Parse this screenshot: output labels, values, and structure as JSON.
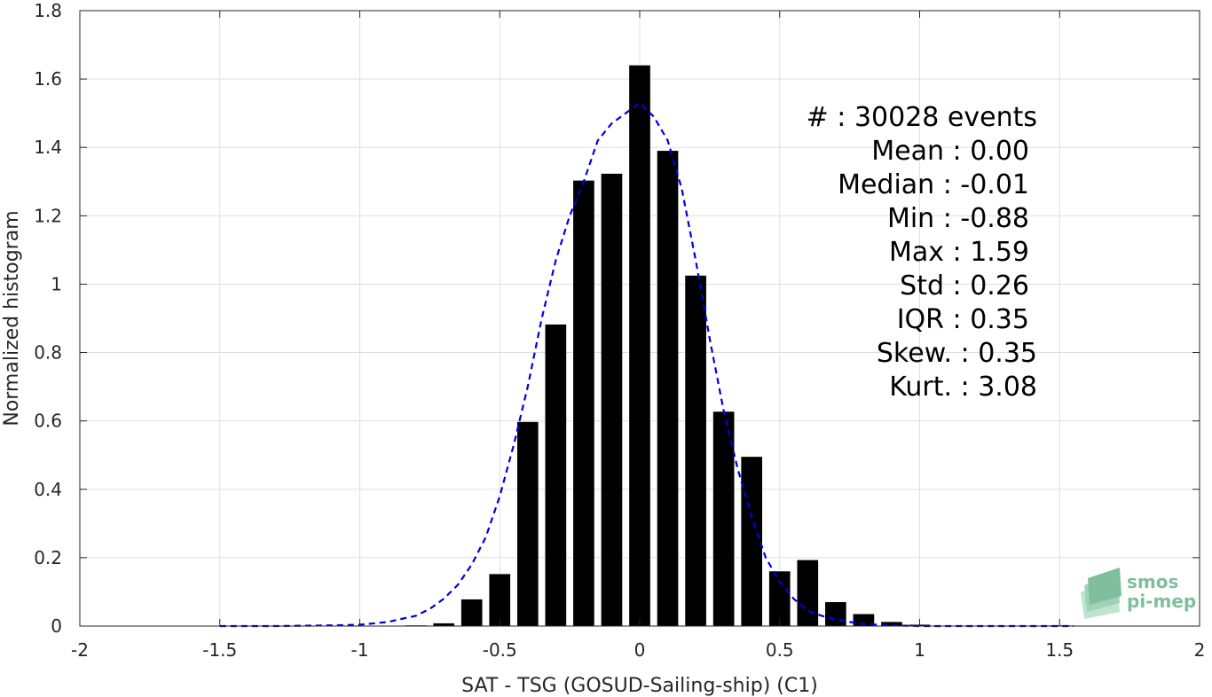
{
  "chart_data": {
    "type": "bar",
    "xlabel": "SAT - TSG (GOSUD-Sailing-ship) (C1)",
    "ylabel": "Normalized histogram",
    "xlim": [
      -2,
      2
    ],
    "ylim": [
      0,
      1.8
    ],
    "xticks": [
      -2,
      -1.5,
      -1,
      -0.5,
      0,
      0.5,
      1,
      1.5,
      2
    ],
    "xtick_labels": [
      "-2",
      "-1.5",
      "-1",
      "-0.5",
      "0",
      "0.5",
      "1",
      "1.5",
      "2"
    ],
    "yticks": [
      0,
      0.2,
      0.4,
      0.6,
      0.8,
      1,
      1.2,
      1.4,
      1.6,
      1.8
    ],
    "ytick_labels": [
      "0",
      "0.2",
      "0.4",
      "0.6",
      "0.8",
      "1",
      "1.2",
      "1.4",
      "1.6",
      "1.8"
    ],
    "grid": true,
    "bar_color": "#000000",
    "bars": {
      "centers": [
        -0.8,
        -0.7,
        -0.6,
        -0.5,
        -0.4,
        -0.3,
        -0.2,
        -0.1,
        0.0,
        0.1,
        0.2,
        0.3,
        0.4,
        0.5,
        0.6,
        0.7,
        0.8,
        0.9,
        1.0,
        1.5
      ],
      "values": [
        0.002,
        0.008,
        0.078,
        0.152,
        0.597,
        0.882,
        1.303,
        1.323,
        1.64,
        1.39,
        1.025,
        0.627,
        0.495,
        0.16,
        0.193,
        0.07,
        0.035,
        0.012,
        0.004,
        0.002
      ],
      "width": 0.075
    },
    "fit_curve": {
      "style": "dashed",
      "color": "#0000dd",
      "x": [
        -1.5,
        -1.3,
        -1.1,
        -1.0,
        -0.9,
        -0.8,
        -0.75,
        -0.7,
        -0.65,
        -0.6,
        -0.55,
        -0.5,
        -0.45,
        -0.4,
        -0.35,
        -0.3,
        -0.25,
        -0.2,
        -0.15,
        -0.1,
        -0.05,
        0.0,
        0.05,
        0.1,
        0.15,
        0.2,
        0.25,
        0.3,
        0.35,
        0.4,
        0.45,
        0.5,
        0.55,
        0.6,
        0.65,
        0.7,
        0.75,
        0.8,
        0.9,
        1.0,
        1.1,
        1.3,
        1.55
      ],
      "y": [
        0.0,
        0.0,
        0.002,
        0.004,
        0.012,
        0.03,
        0.05,
        0.08,
        0.12,
        0.18,
        0.26,
        0.38,
        0.53,
        0.7,
        0.9,
        1.07,
        1.2,
        1.3,
        1.42,
        1.47,
        1.5,
        1.53,
        1.49,
        1.42,
        1.28,
        1.07,
        0.84,
        0.63,
        0.46,
        0.32,
        0.2,
        0.13,
        0.08,
        0.045,
        0.03,
        0.02,
        0.012,
        0.006,
        0.002,
        0.0,
        0.0,
        0.0,
        0.0
      ]
    },
    "stats": [
      {
        "label": "#",
        "sep": ":",
        "value": "30028 events"
      },
      {
        "label": "Mean",
        "sep": ":",
        "value": "0.00"
      },
      {
        "label": "Median",
        "sep": ":",
        "value": "-0.01"
      },
      {
        "label": "Min",
        "sep": ":",
        "value": "-0.88"
      },
      {
        "label": "Max",
        "sep": ":",
        "value": "1.59"
      },
      {
        "label": "Std",
        "sep": ":",
        "value": "0.26"
      },
      {
        "label": "IQR",
        "sep": ":",
        "value": "0.35"
      },
      {
        "label": "Skew.",
        "sep": ":",
        "value": "0.35"
      },
      {
        "label": "Kurt.",
        "sep": ":",
        "value": "3.08"
      }
    ]
  },
  "logo": {
    "line1": "smos",
    "line2": "pi-mep",
    "color": "#7fbf9e"
  }
}
